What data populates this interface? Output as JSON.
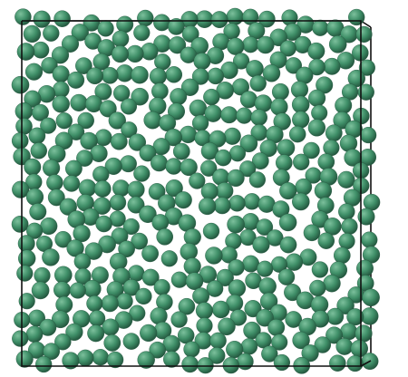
{
  "scene": {
    "subject": "particle-packing-simulation",
    "particle_color": "#3f8f68",
    "particle_highlight": "#7cc09c",
    "particle_shadow": "#24573f",
    "box_line_color": "#111111",
    "background": "#ffffff"
  }
}
